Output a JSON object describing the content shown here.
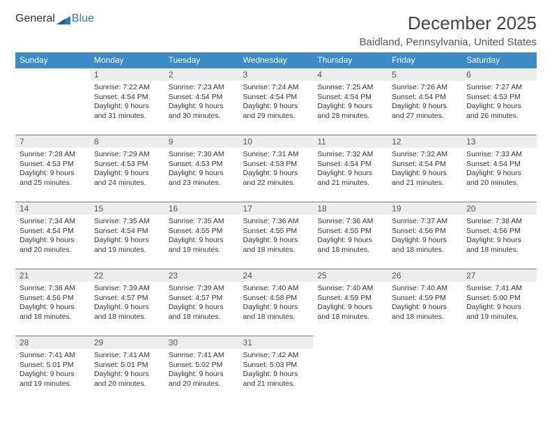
{
  "brand": {
    "part1": "General",
    "part2": "Blue"
  },
  "header": {
    "title": "December 2025",
    "location": "Baidland, Pennsylvania, United States"
  },
  "colors": {
    "header_bg": "#3b8bc9",
    "header_text": "#ffffff",
    "daynum_bg": "#ededed",
    "row_border": "#3b8bc9",
    "brand_blue": "#2f7bbf"
  },
  "weekdays": [
    "Sunday",
    "Monday",
    "Tuesday",
    "Wednesday",
    "Thursday",
    "Friday",
    "Saturday"
  ],
  "weeks": [
    [
      null,
      {
        "n": "1",
        "sr": "7:22 AM",
        "ss": "4:54 PM",
        "dl": "9 hours and 31 minutes."
      },
      {
        "n": "2",
        "sr": "7:23 AM",
        "ss": "4:54 PM",
        "dl": "9 hours and 30 minutes."
      },
      {
        "n": "3",
        "sr": "7:24 AM",
        "ss": "4:54 PM",
        "dl": "9 hours and 29 minutes."
      },
      {
        "n": "4",
        "sr": "7:25 AM",
        "ss": "4:54 PM",
        "dl": "9 hours and 28 minutes."
      },
      {
        "n": "5",
        "sr": "7:26 AM",
        "ss": "4:54 PM",
        "dl": "9 hours and 27 minutes."
      },
      {
        "n": "6",
        "sr": "7:27 AM",
        "ss": "4:53 PM",
        "dl": "9 hours and 26 minutes."
      }
    ],
    [
      {
        "n": "7",
        "sr": "7:28 AM",
        "ss": "4:53 PM",
        "dl": "9 hours and 25 minutes."
      },
      {
        "n": "8",
        "sr": "7:29 AM",
        "ss": "4:53 PM",
        "dl": "9 hours and 24 minutes."
      },
      {
        "n": "9",
        "sr": "7:30 AM",
        "ss": "4:53 PM",
        "dl": "9 hours and 23 minutes."
      },
      {
        "n": "10",
        "sr": "7:31 AM",
        "ss": "4:53 PM",
        "dl": "9 hours and 22 minutes."
      },
      {
        "n": "11",
        "sr": "7:32 AM",
        "ss": "4:54 PM",
        "dl": "9 hours and 21 minutes."
      },
      {
        "n": "12",
        "sr": "7:32 AM",
        "ss": "4:54 PM",
        "dl": "9 hours and 21 minutes."
      },
      {
        "n": "13",
        "sr": "7:33 AM",
        "ss": "4:54 PM",
        "dl": "9 hours and 20 minutes."
      }
    ],
    [
      {
        "n": "14",
        "sr": "7:34 AM",
        "ss": "4:54 PM",
        "dl": "9 hours and 20 minutes."
      },
      {
        "n": "15",
        "sr": "7:35 AM",
        "ss": "4:54 PM",
        "dl": "9 hours and 19 minutes."
      },
      {
        "n": "16",
        "sr": "7:35 AM",
        "ss": "4:55 PM",
        "dl": "9 hours and 19 minutes."
      },
      {
        "n": "17",
        "sr": "7:36 AM",
        "ss": "4:55 PM",
        "dl": "9 hours and 18 minutes."
      },
      {
        "n": "18",
        "sr": "7:36 AM",
        "ss": "4:55 PM",
        "dl": "9 hours and 18 minutes."
      },
      {
        "n": "19",
        "sr": "7:37 AM",
        "ss": "4:56 PM",
        "dl": "9 hours and 18 minutes."
      },
      {
        "n": "20",
        "sr": "7:38 AM",
        "ss": "4:56 PM",
        "dl": "9 hours and 18 minutes."
      }
    ],
    [
      {
        "n": "21",
        "sr": "7:38 AM",
        "ss": "4:56 PM",
        "dl": "9 hours and 18 minutes."
      },
      {
        "n": "22",
        "sr": "7:39 AM",
        "ss": "4:57 PM",
        "dl": "9 hours and 18 minutes."
      },
      {
        "n": "23",
        "sr": "7:39 AM",
        "ss": "4:57 PM",
        "dl": "9 hours and 18 minutes."
      },
      {
        "n": "24",
        "sr": "7:40 AM",
        "ss": "4:58 PM",
        "dl": "9 hours and 18 minutes."
      },
      {
        "n": "25",
        "sr": "7:40 AM",
        "ss": "4:59 PM",
        "dl": "9 hours and 18 minutes."
      },
      {
        "n": "26",
        "sr": "7:40 AM",
        "ss": "4:59 PM",
        "dl": "9 hours and 18 minutes."
      },
      {
        "n": "27",
        "sr": "7:41 AM",
        "ss": "5:00 PM",
        "dl": "9 hours and 19 minutes."
      }
    ],
    [
      {
        "n": "28",
        "sr": "7:41 AM",
        "ss": "5:01 PM",
        "dl": "9 hours and 19 minutes."
      },
      {
        "n": "29",
        "sr": "7:41 AM",
        "ss": "5:01 PM",
        "dl": "9 hours and 20 minutes."
      },
      {
        "n": "30",
        "sr": "7:41 AM",
        "ss": "5:02 PM",
        "dl": "9 hours and 20 minutes."
      },
      {
        "n": "31",
        "sr": "7:42 AM",
        "ss": "5:03 PM",
        "dl": "9 hours and 21 minutes."
      },
      null,
      null,
      null
    ]
  ],
  "labels": {
    "sunrise": "Sunrise:",
    "sunset": "Sunset:",
    "daylight": "Daylight:"
  }
}
